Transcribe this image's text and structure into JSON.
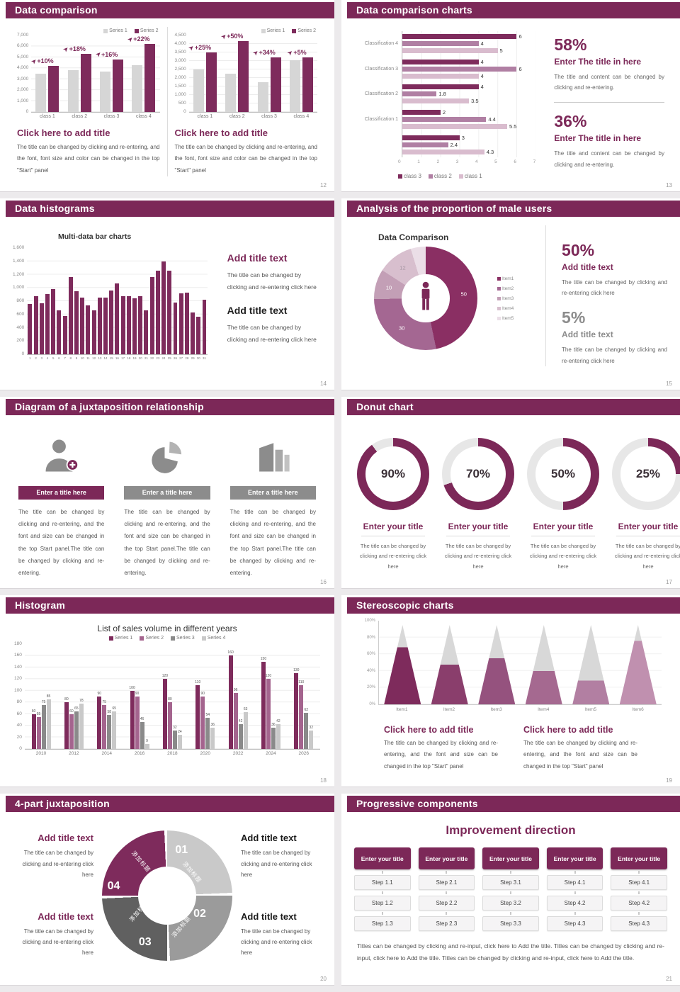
{
  "accent": "#7C2858",
  "slides": {
    "s12": {
      "page": "12",
      "title": "Data comparison",
      "panels": [
        {
          "heading": "Click here to add title",
          "body": "The title can be changed by clicking and re-entering, and the font, font size and color can be changed in the top \"Start\" panel"
        },
        {
          "heading": "Click here to add title",
          "body": "The title can be changed by clicking and re-entering, and the font, font size and color can be changed in the top \"Start\" panel"
        }
      ]
    },
    "s13": {
      "page": "13",
      "title": "Data comparison charts",
      "stats": [
        {
          "value": "58%",
          "heading": "Enter The title in here",
          "body": "The title and content can be changed by clicking and re-entering."
        },
        {
          "value": "36%",
          "heading": "Enter The title in here",
          "body": "The title and content can be changed by clicking and re-entering."
        }
      ]
    },
    "s14": {
      "page": "14",
      "title": "Data histograms",
      "blocks": [
        {
          "heading": "Add title text",
          "body": "The title can be changed by clicking and re-entering click here"
        },
        {
          "heading": "Add title text",
          "body": "The title can be changed by clicking and re-entering click here"
        }
      ]
    },
    "s15": {
      "page": "15",
      "title": "Analysis of the proportion of male users",
      "stats": [
        {
          "value": "50%",
          "heading": "Add title text",
          "body": "The title can be changed by clicking and re-entering click here"
        },
        {
          "value": "5%",
          "heading": "Add title text",
          "body": "The title can be changed by clicking and re-entering click here"
        }
      ]
    },
    "s16": {
      "page": "16",
      "title": "Diagram of a juxtaposition relationship",
      "items": [
        {
          "title": "Enter a title here",
          "bar_color": "#7C2858",
          "body": "The title can be changed by clicking and re-entering, and the font and size can be changed in the top Start panel.The title can be changed by clicking and re-entering."
        },
        {
          "title": "Enter a title here",
          "bar_color": "#8C8C8C",
          "body": "The title can be changed by clicking and re-entering, and the font and size can be changed in the top Start panel.The title can be changed by clicking and re-entering."
        },
        {
          "title": "Enter a title here",
          "bar_color": "#8C8C8C",
          "body": "The title can be changed by clicking and re-entering, and the font and size can be changed in the top Start panel.The title can be changed by clicking and re-entering."
        }
      ]
    },
    "s17": {
      "page": "17",
      "title": "Donut chart",
      "items": [
        {
          "pct": "90%",
          "heading": "Enter your title",
          "body": "The title can be changed by clicking and re-entering click here"
        },
        {
          "pct": "70%",
          "heading": "Enter your title",
          "body": "The title can be changed by clicking and re-entering click here"
        },
        {
          "pct": "50%",
          "heading": "Enter your title",
          "body": "The title can be changed by clicking and re-entering click here"
        },
        {
          "pct": "25%",
          "heading": "Enter your title",
          "body": "The title can be changed by clicking and re-entering click here"
        }
      ]
    },
    "s18": {
      "page": "18",
      "title": "Histogram"
    },
    "s19": {
      "page": "19",
      "title": "Stereoscopic charts",
      "blocks": [
        {
          "heading": "Click here to add title",
          "body": "The title can be changed by clicking and re-entering, and the font and size can be changed in the top \"Start\" panel"
        },
        {
          "heading": "Click here to add title",
          "body": "The title can be changed by clicking and re-entering, and the font and size can be changed in the top \"Start\" panel"
        }
      ]
    },
    "s20": {
      "page": "20",
      "title": "4-part juxtaposition",
      "blocks": [
        {
          "heading": "Add title text",
          "body": "The title can be changed by clicking and re-entering click here"
        },
        {
          "heading": "Add title text",
          "body": "The title can be changed by clicking and re-entering click here"
        },
        {
          "heading": "Add title text",
          "body": "The title can be changed by clicking and re-entering click here"
        },
        {
          "heading": "Add title text",
          "body": "The title can be changed by clicking and re-entering click here"
        }
      ]
    },
    "s21": {
      "page": "21",
      "title": "Progressive components",
      "heading": "Improvement direction",
      "column_header": "Enter your title",
      "columns": [
        [
          "Step 1.1",
          "Step 1.2",
          "Step 1.3"
        ],
        [
          "Step 2.1",
          "Step 2.2",
          "Step 2.3"
        ],
        [
          "Step 3.1",
          "Step 3.2",
          "Step 3.3"
        ],
        [
          "Step 4.1",
          "Step 4.2",
          "Step 4.3"
        ],
        [
          "Step 4.1",
          "Step 4.2",
          "Step 4.3"
        ]
      ],
      "footer": "Titles can be changed by clicking and re-input, click here to Add the title. Titles can be changed by clicking and re-input, click here to Add the title. Titles can be changed by clicking and re-input, click here to Add the title."
    }
  },
  "chart_data": [
    {
      "id": "slide12-left",
      "type": "bar",
      "categories": [
        "class 1",
        "class 2",
        "class 3",
        "class 4"
      ],
      "series": [
        {
          "name": "Series 1",
          "color": "#D6D6D6",
          "values": [
            3500,
            3800,
            3700,
            4300
          ]
        },
        {
          "name": "Series 2",
          "color": "#7E2B5C",
          "values": [
            4200,
            5300,
            4800,
            6200
          ]
        }
      ],
      "annotations": [
        "+10%",
        "+18%",
        "+16%",
        "+22%"
      ],
      "ylim": [
        0,
        7000
      ],
      "ytick": 1000,
      "grid": true,
      "legend_position": "top-right"
    },
    {
      "id": "slide12-right",
      "type": "bar",
      "categories": [
        "class 1",
        "class 2",
        "class 3",
        "class 4"
      ],
      "series": [
        {
          "name": "Series 1",
          "color": "#D6D6D6",
          "values": [
            2500,
            2250,
            1750,
            3050
          ]
        },
        {
          "name": "Series 2",
          "color": "#7E2B5C",
          "values": [
            3500,
            4150,
            3200,
            3200
          ]
        }
      ],
      "annotations": [
        "+25%",
        "+50%",
        "+34%",
        "+5%"
      ],
      "ylim": [
        0,
        4500
      ],
      "ytick": 500,
      "grid": true,
      "legend_position": "top-right"
    },
    {
      "id": "slide13",
      "type": "bar",
      "orientation": "horizontal",
      "categories": [
        "Classification 4",
        "Classification 3",
        "Classification 2",
        "Classification 1",
        ""
      ],
      "series": [
        {
          "name": "class 3",
          "color": "#7E2B5C",
          "values": [
            6,
            4,
            4,
            2,
            3
          ]
        },
        {
          "name": "class 2",
          "color": "#B07FA3",
          "values": [
            4,
            6,
            1.8,
            4.4,
            2.4
          ]
        },
        {
          "name": "class 1",
          "color": "#D9BCCE",
          "values": [
            5,
            4,
            3.5,
            5.5,
            4.3
          ]
        }
      ],
      "xlim": [
        0,
        7
      ],
      "xtick": 1,
      "value_labels": true,
      "legend_position": "bottom"
    },
    {
      "id": "slide14",
      "type": "bar",
      "title": "Multi-data bar charts",
      "categories": [
        "1",
        "2",
        "3",
        "4",
        "5",
        "6",
        "7",
        "8",
        "9",
        "10",
        "11",
        "12",
        "13",
        "14",
        "15",
        "16",
        "17",
        "18",
        "19",
        "20",
        "21",
        "22",
        "23",
        "24",
        "25",
        "26",
        "27",
        "28",
        "29",
        "30",
        "31"
      ],
      "series": [
        {
          "name": "Series 1",
          "color": "#7E2B5C",
          "values": [
            760,
            870,
            770,
            910,
            980,
            665,
            580,
            1160,
            950,
            855,
            740,
            665,
            855,
            855,
            960,
            1065,
            870,
            870,
            845,
            870,
            665,
            1160,
            1255,
            1400,
            1255,
            775,
            920,
            925,
            625,
            570,
            820
          ]
        }
      ],
      "ylim": [
        0,
        1600
      ],
      "ytick": 200,
      "grid": true
    },
    {
      "id": "slide15",
      "type": "pie",
      "title": "Data Comparison",
      "labels": [
        "50",
        "30",
        "10",
        "12",
        ""
      ],
      "values": [
        50,
        30,
        10,
        12,
        5
      ],
      "colors": [
        "#8A2F63",
        "#A46792",
        "#C39FB6",
        "#D8BFCE",
        "#EBDEE7"
      ],
      "label_colors": [
        "#FFFFFF",
        "#FFFFFF",
        "#FFFFFF",
        "#A394A0",
        "#A394A0"
      ],
      "legend": [
        "Item1",
        "Item2",
        "Item3",
        "Item4",
        "Item5"
      ],
      "hole": true,
      "center_icon": "male-person-icon"
    },
    {
      "id": "slide17",
      "type": "donut-set",
      "ring_color": "#7C2858",
      "track_color": "#E7E7E7",
      "items": [
        {
          "label": "90%",
          "value": 90
        },
        {
          "label": "70%",
          "value": 70
        },
        {
          "label": "50%",
          "value": 50
        },
        {
          "label": "25%",
          "value": 25
        }
      ]
    },
    {
      "id": "slide18",
      "type": "bar",
      "title": "List of sales volume in different years",
      "categories": [
        "2010",
        "2012",
        "2014",
        "2016",
        "2018",
        "2020",
        "2022",
        "2024",
        "2026"
      ],
      "series": [
        {
          "name": "Series 1",
          "color": "#7E2B5C",
          "values": [
            60,
            80,
            90,
            100,
            120,
            110,
            160,
            150,
            130
          ]
        },
        {
          "name": "Series 2",
          "color": "#A4648E",
          "values": [
            55,
            60,
            75,
            90,
            80,
            90,
            96,
            120,
            110
          ]
        },
        {
          "name": "Series 3",
          "color": "#8A8A8A",
          "values": [
            75,
            65,
            58,
            46,
            32,
            54,
            42,
            36,
            62
          ]
        },
        {
          "name": "Series 4",
          "color": "#C9C9C9",
          "values": [
            85,
            78,
            65,
            9,
            24,
            36,
            63,
            42,
            32
          ]
        }
      ],
      "ylim": [
        0,
        180
      ],
      "ytick": 20,
      "value_labels": true,
      "grid": true,
      "legend_position": "top"
    },
    {
      "id": "slide19",
      "type": "cone",
      "categories": [
        "Item1",
        "Item2",
        "Item3",
        "Item4",
        "Item5",
        "Item6"
      ],
      "values_pct": [
        72,
        50,
        58,
        42,
        30,
        80
      ],
      "colors": [
        "#7E2B5C",
        "#8A3E6C",
        "#95527E",
        "#A56990",
        "#B27FA2",
        "#C090AF"
      ],
      "top_color": "#D8D8D8",
      "ylim": [
        0,
        100
      ],
      "ytick": 20
    },
    {
      "id": "slide20",
      "type": "ring",
      "segments": [
        {
          "num": "01",
          "label": "添加标题",
          "color": "#C9C9C9"
        },
        {
          "num": "02",
          "label": "添加标题",
          "color": "#9B9B9B"
        },
        {
          "num": "03",
          "label": "添加标题",
          "color": "#606060"
        },
        {
          "num": "04",
          "label": "添加标题",
          "color": "#7E2B5C"
        }
      ]
    }
  ]
}
